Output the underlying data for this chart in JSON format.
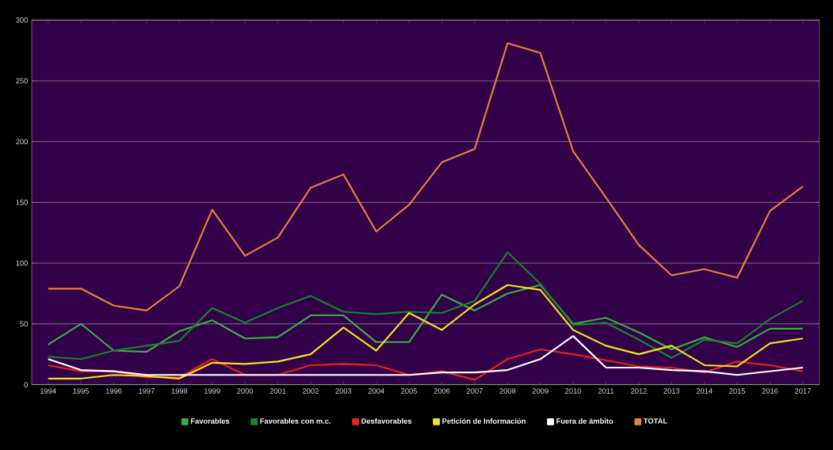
{
  "chart_data": {
    "type": "line",
    "categories": [
      "1994",
      "1995",
      "1996",
      "1997",
      "1998",
      "1999",
      "2000",
      "2001",
      "2002",
      "2003",
      "2004",
      "2005",
      "2006",
      "2007",
      "2008",
      "2009",
      "2010",
      "2011",
      "2012",
      "2013",
      "2014",
      "2015",
      "2016",
      "2017"
    ],
    "series": [
      {
        "name": "Favorables",
        "color": "#3cb043",
        "values": [
          33,
          50,
          28,
          27,
          44,
          53,
          38,
          39,
          57,
          57,
          35,
          35,
          74,
          61,
          75,
          82,
          50,
          55,
          43,
          29,
          39,
          31,
          46,
          46
        ]
      },
      {
        "name": "Favorables con m.c.",
        "color": "#15862a",
        "values": [
          23,
          21,
          28,
          32,
          36,
          63,
          51,
          63,
          73,
          60,
          58,
          60,
          59,
          69,
          109,
          83,
          49,
          51,
          37,
          22,
          37,
          34,
          54,
          69
        ]
      },
      {
        "name": "Desfavorables",
        "color": "#e8221c",
        "values": [
          16,
          11,
          11,
          6,
          6,
          21,
          8,
          8,
          16,
          17,
          16,
          8,
          11,
          4,
          21,
          29,
          25,
          20,
          15,
          14,
          10,
          19,
          16,
          11
        ]
      },
      {
        "name": "Petición de Información",
        "color": "#f2e41c",
        "values": [
          5,
          5,
          8,
          7,
          5,
          18,
          17,
          19,
          25,
          47,
          28,
          59,
          45,
          66,
          82,
          78,
          45,
          32,
          25,
          32,
          16,
          15,
          34,
          38
        ]
      },
      {
        "name": "Fuera de ámbito",
        "color": "#ffffff",
        "values": [
          21,
          12,
          11,
          8,
          8,
          8,
          8,
          8,
          8,
          8,
          8,
          8,
          10,
          10,
          12,
          21,
          40,
          14,
          14,
          12,
          11,
          8,
          11,
          14
        ]
      },
      {
        "name": "TOTAL",
        "color": "#e8833a",
        "values": [
          79,
          79,
          65,
          61,
          81,
          144,
          106,
          121,
          162,
          173,
          126,
          148,
          183,
          194,
          281,
          273,
          192,
          154,
          115,
          90,
          95,
          88,
          143,
          163
        ]
      }
    ],
    "ylim": [
      0,
      300
    ],
    "yticks": [
      0,
      50,
      100,
      150,
      200,
      250,
      300
    ],
    "grid": "y",
    "legend": "bottom",
    "marker": "none",
    "line_style": "solid"
  }
}
